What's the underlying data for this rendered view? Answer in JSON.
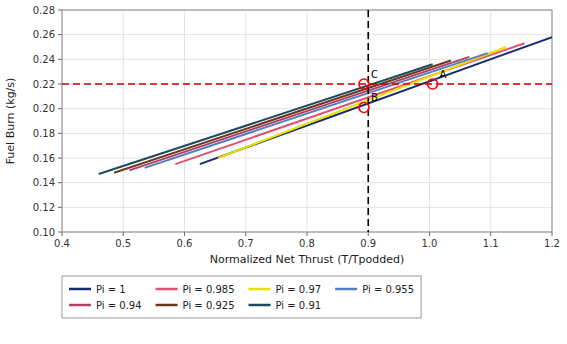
{
  "chart_data": {
    "type": "line",
    "xlabel": "Normalized Net Thrust (T/Tpodded)",
    "ylabel": "Fuel Burn (kg/s)",
    "xlim": [
      0.4,
      1.2
    ],
    "ylim": [
      0.1,
      0.28
    ],
    "xticks": [
      0.4,
      0.5,
      0.6,
      0.7,
      0.8,
      0.9,
      {
        "value": 1.0,
        "label": "1.0"
      },
      1.1,
      1.2
    ],
    "yticks": [
      {
        "value": 0.1,
        "label": "0.10"
      },
      0.12,
      0.14,
      0.16,
      0.18,
      {
        "value": 0.2,
        "label": "0.20"
      },
      0.22,
      0.24,
      0.26,
      0.28
    ],
    "grid": true,
    "legend": "below",
    "series": [
      {
        "name": "Pi  =  1",
        "color": "#1a2a6e",
        "x": [
          0.625,
          1.2
        ],
        "values": [
          0.155,
          0.258
        ]
      },
      {
        "name": "Pi  =  0.985",
        "color": "#e05070",
        "x": [
          0.585,
          1.155
        ],
        "values": [
          0.155,
          0.253
        ]
      },
      {
        "name": "Pi  =  0.97",
        "color": "#e8e000",
        "x": [
          0.655,
          1.125
        ],
        "values": [
          0.16,
          0.25
        ]
      },
      {
        "name": "Pi  =  0.955",
        "color": "#4f7ec8",
        "x": [
          0.535,
          1.095
        ],
        "values": [
          0.152,
          0.245
        ]
      },
      {
        "name": "Pi  =  0.94",
        "color": "#b04060",
        "x": [
          0.51,
          1.065
        ],
        "values": [
          0.15,
          0.242
        ]
      },
      {
        "name": "Pi  =  0.925",
        "color": "#6b3820",
        "x": [
          0.485,
          1.035
        ],
        "values": [
          0.148,
          0.239
        ]
      },
      {
        "name": "Pi  =  0.91",
        "color": "#1e4a60",
        "x": [
          0.46,
          1.005
        ],
        "values": [
          0.147,
          0.236
        ]
      }
    ],
    "reference_lines": [
      {
        "axis": "y",
        "value": 0.22,
        "color": "#cc0000",
        "line_style": "dashed"
      },
      {
        "axis": "x",
        "value": 0.9,
        "color": "#000000",
        "line_style": "dashed"
      }
    ],
    "annotations": [
      {
        "x": 1.005,
        "y": 0.22,
        "label": "A",
        "color": "#ff0000"
      },
      {
        "x": 0.893,
        "y": 0.201,
        "label": "B",
        "color": "#ff0000"
      },
      {
        "x": 0.893,
        "y": 0.22,
        "label": "C",
        "color": "#ff0000"
      }
    ]
  }
}
